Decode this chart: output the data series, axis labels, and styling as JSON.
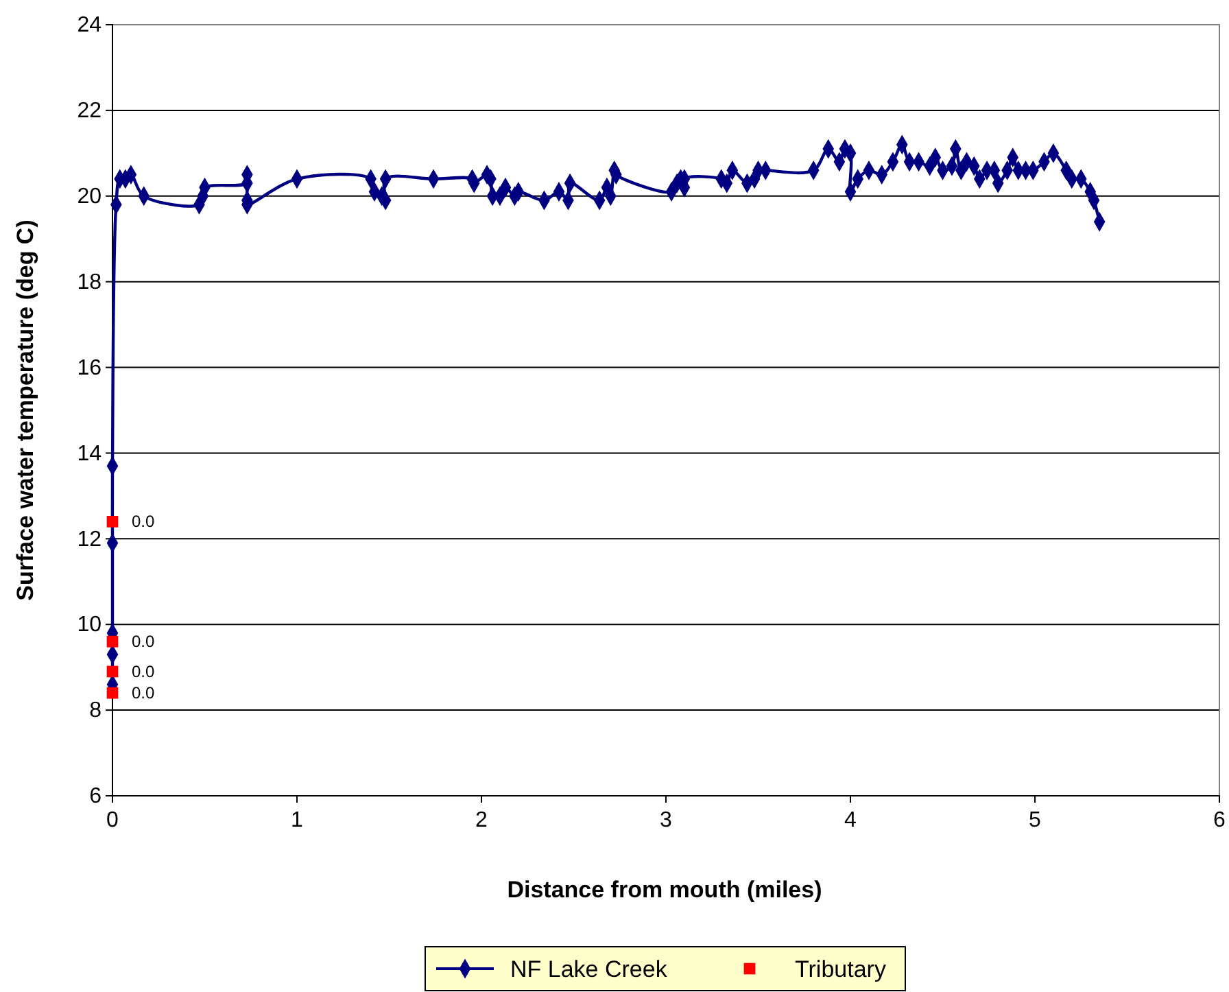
{
  "chart_data": {
    "type": "line",
    "xlabel": "Distance from mouth (miles)",
    "ylabel": "Surface water temperature (deg C)",
    "xlim": [
      0,
      6
    ],
    "xticks": [
      0,
      1,
      2,
      3,
      4,
      5,
      6
    ],
    "ylim": [
      6,
      24
    ],
    "yticks": [
      6,
      8,
      10,
      12,
      14,
      16,
      18,
      20,
      22,
      24
    ],
    "grid": "y",
    "legend": "bottom",
    "series": [
      {
        "name": "NF Lake Creek",
        "color": "#000080",
        "marker": "diamond",
        "line_style": "solid",
        "x": [
          0,
          0,
          0,
          0,
          0,
          0.02,
          0.04,
          0.07,
          0.1,
          0.17,
          0.47,
          0.49,
          0.5,
          0.73,
          0.73,
          0.73,
          0.73,
          1.0,
          1.4,
          1.42,
          1.46,
          1.48,
          1.48,
          1.74,
          1.95,
          1.96,
          2.03,
          2.05,
          2.06,
          2.1,
          2.13,
          2.18,
          2.2,
          2.34,
          2.42,
          2.47,
          2.48,
          2.64,
          2.68,
          2.7,
          2.72,
          2.73,
          3.03,
          3.06,
          3.08,
          3.1,
          3.1,
          3.3,
          3.33,
          3.36,
          3.44,
          3.48,
          3.5,
          3.54,
          3.8,
          3.88,
          3.94,
          3.97,
          4.0,
          4.0,
          4.04,
          4.1,
          4.17,
          4.23,
          4.28,
          4.32,
          4.37,
          4.43,
          4.46,
          4.5,
          4.55,
          4.57,
          4.6,
          4.63,
          4.67,
          4.7,
          4.74,
          4.78,
          4.8,
          4.85,
          4.88,
          4.91,
          4.95,
          4.99,
          5.05,
          5.1,
          5.17,
          5.2,
          5.25,
          5.3,
          5.32,
          5.35
        ],
        "values": [
          8.6,
          9.3,
          9.8,
          11.9,
          13.7,
          19.8,
          20.4,
          20.4,
          20.5,
          20.0,
          19.8,
          20.0,
          20.2,
          20.3,
          20.5,
          19.9,
          19.8,
          20.4,
          20.4,
          20.1,
          20.0,
          19.9,
          20.4,
          20.4,
          20.4,
          20.3,
          20.5,
          20.4,
          20.0,
          20.0,
          20.2,
          20.0,
          20.1,
          19.9,
          20.1,
          19.9,
          20.3,
          19.9,
          20.2,
          20.0,
          20.6,
          20.5,
          20.1,
          20.3,
          20.4,
          20.2,
          20.4,
          20.4,
          20.3,
          20.6,
          20.3,
          20.4,
          20.6,
          20.6,
          20.6,
          21.1,
          20.8,
          21.1,
          21.0,
          20.1,
          20.4,
          20.6,
          20.5,
          20.8,
          21.2,
          20.8,
          20.8,
          20.7,
          20.9,
          20.6,
          20.7,
          21.1,
          20.6,
          20.8,
          20.7,
          20.4,
          20.6,
          20.6,
          20.3,
          20.6,
          20.9,
          20.6,
          20.6,
          20.6,
          20.8,
          21.0,
          20.6,
          20.4,
          20.4,
          20.1,
          19.9,
          19.4
        ]
      },
      {
        "name": "Tributary",
        "type": "scatter",
        "color": "#ff0000",
        "marker": "square",
        "x": [
          0,
          0,
          0,
          0
        ],
        "values": [
          12.4,
          9.6,
          8.9,
          8.4
        ]
      }
    ],
    "annotations": [
      "0.0",
      "0.0",
      "0.0",
      "0.0"
    ]
  }
}
